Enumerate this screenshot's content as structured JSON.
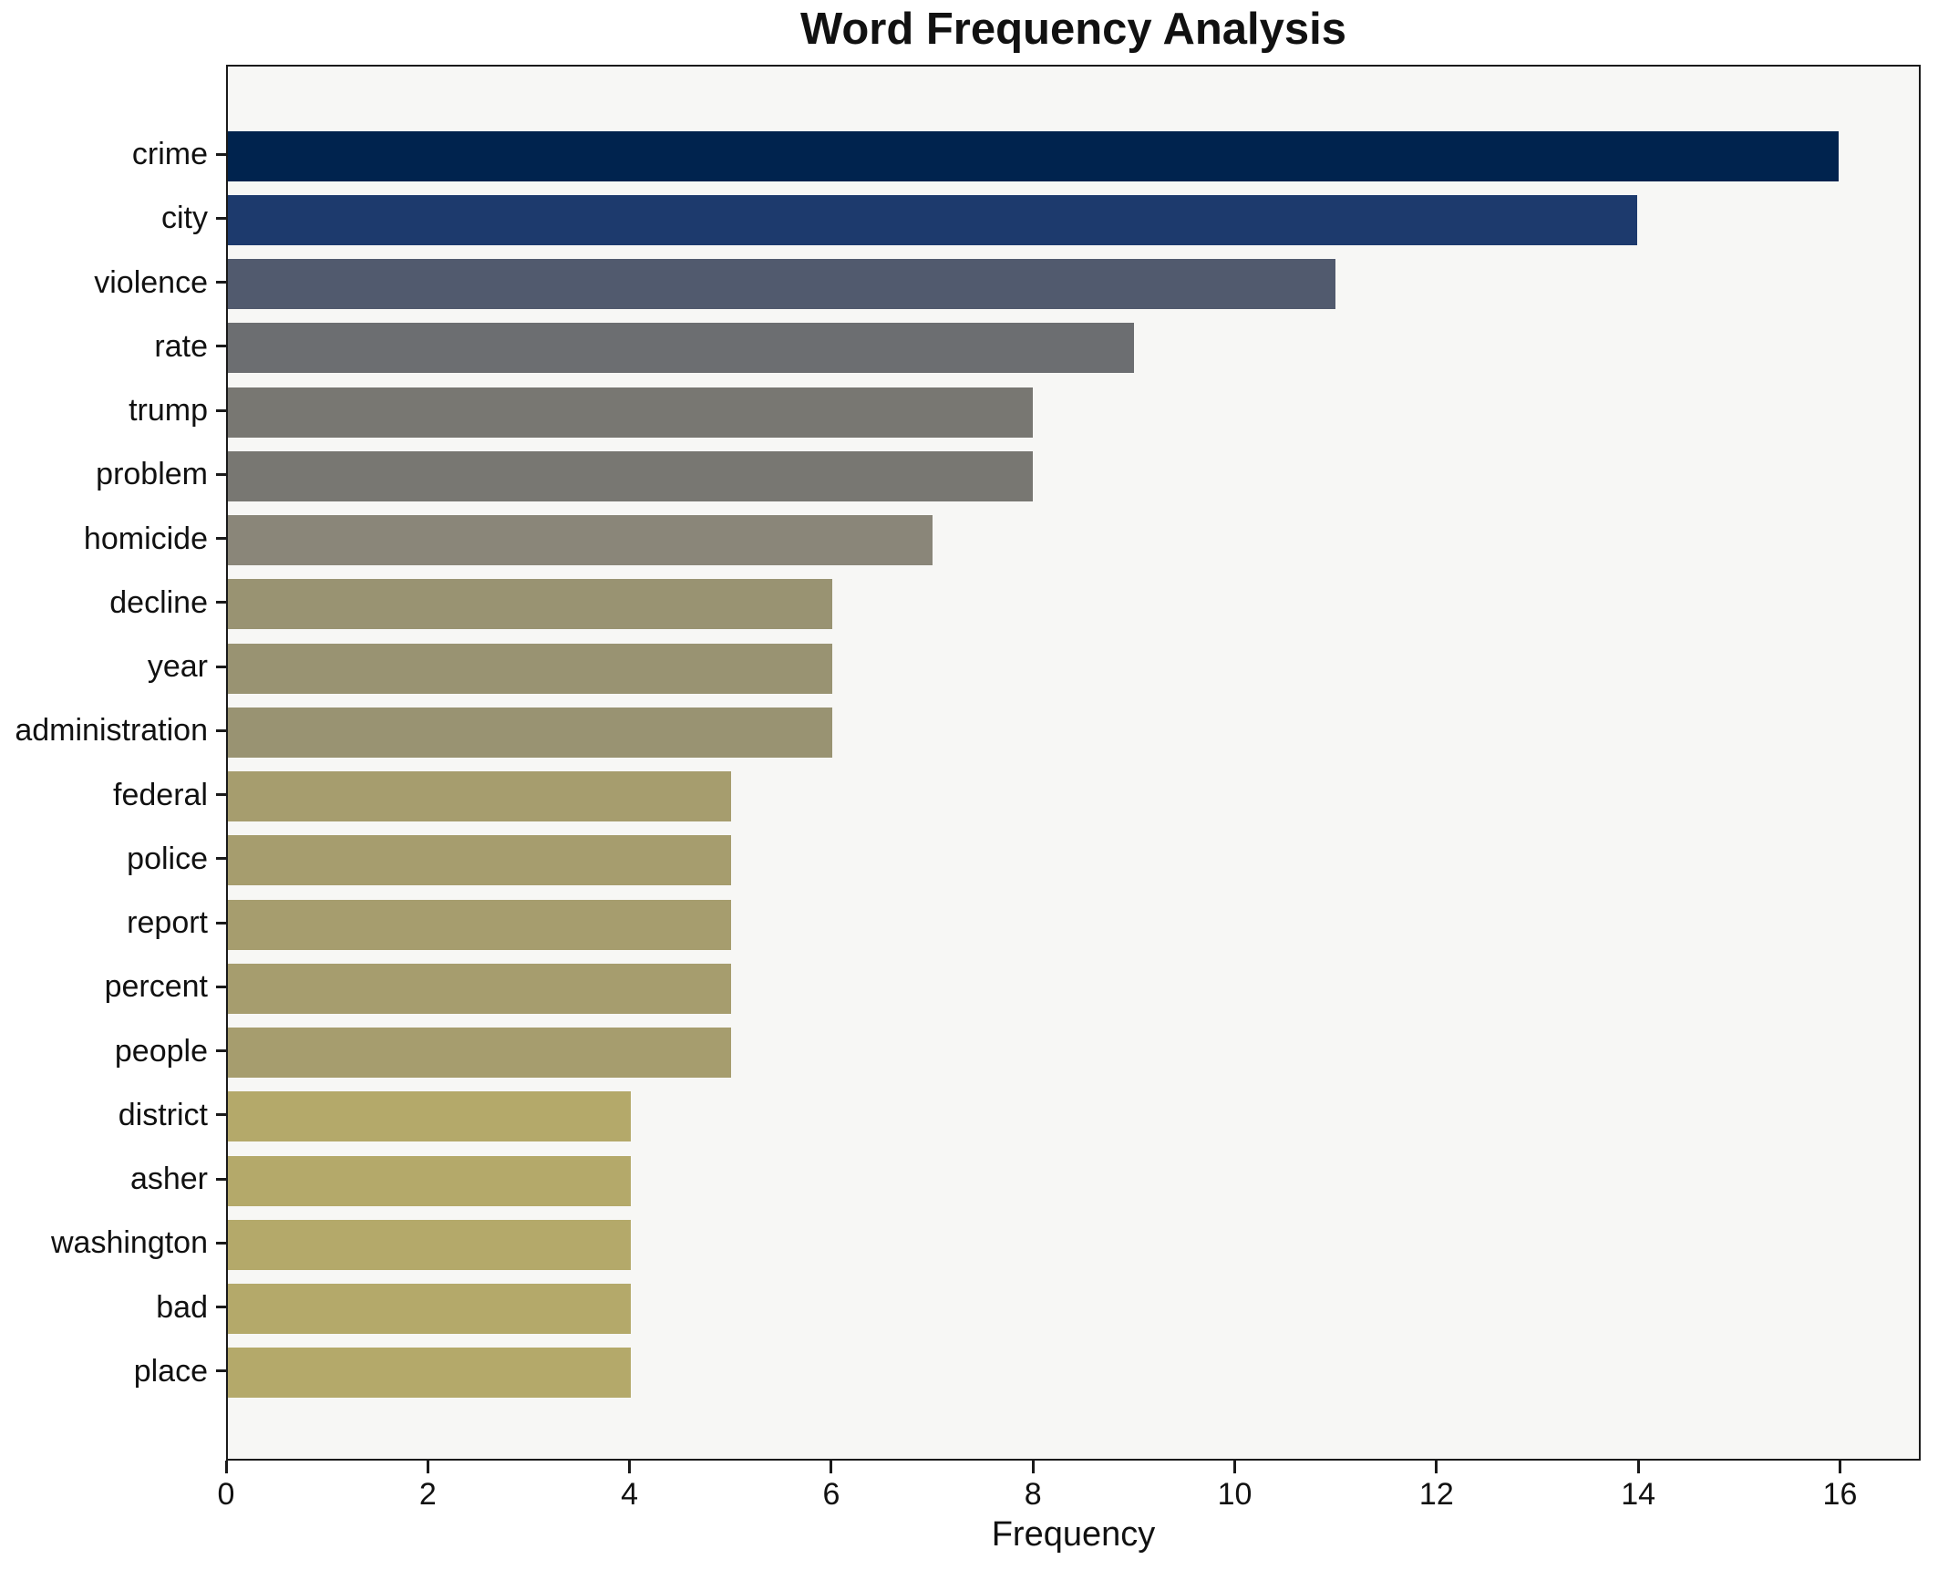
{
  "title": "Word Frequency Analysis",
  "xlabel": "Frequency",
  "chart_data": {
    "type": "bar",
    "orientation": "horizontal",
    "title": "Word Frequency Analysis",
    "xlabel": "Frequency",
    "ylabel": "",
    "categories": [
      "crime",
      "city",
      "violence",
      "rate",
      "trump",
      "problem",
      "homicide",
      "decline",
      "year",
      "administration",
      "federal",
      "police",
      "report",
      "percent",
      "people",
      "district",
      "asher",
      "washington",
      "bad",
      "place"
    ],
    "values": [
      16,
      14,
      11,
      9,
      8,
      8,
      7,
      6,
      6,
      6,
      5,
      5,
      5,
      5,
      5,
      4,
      4,
      4,
      4,
      4
    ],
    "bar_colors": [
      "#00234e",
      "#1d3a6d",
      "#515a6e",
      "#6c6e71",
      "#787772",
      "#787772",
      "#8a8679",
      "#999372",
      "#999372",
      "#999372",
      "#a69d6e",
      "#a69d6e",
      "#a69d6e",
      "#a69d6e",
      "#a69d6e",
      "#b4a96a",
      "#b4a96a",
      "#b4a96a",
      "#b4a96a",
      "#b4a96a"
    ],
    "xticks": [
      0,
      2,
      4,
      6,
      8,
      10,
      12,
      14,
      16
    ],
    "xlim": [
      0,
      16.8
    ],
    "grid": false,
    "legend": null,
    "plot_background": "#f7f7f5",
    "figure_background": "#ffffff",
    "spine_color": "#1a1a1a"
  }
}
